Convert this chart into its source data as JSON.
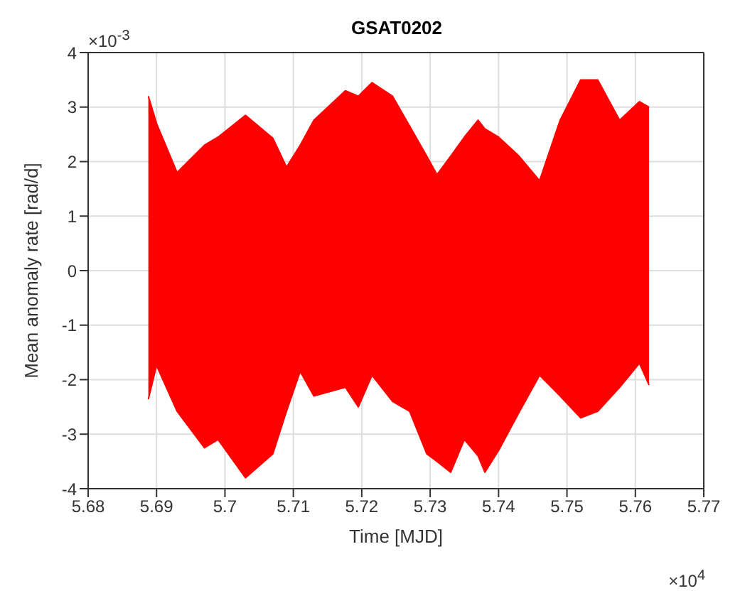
{
  "chart_data": {
    "type": "area",
    "title": "GSAT0202",
    "xlabel": "Time [MJD]",
    "ylabel": "Mean anomaly rate [rad/d]",
    "annotations": [
      "×10$^{-3}$",
      "×10$^{4}$"
    ],
    "xlim": [
      5.68,
      5.77
    ],
    "xticks": [
      5.68,
      5.69,
      5.7,
      5.71,
      5.72,
      5.73,
      5.74,
      5.75,
      5.76,
      5.77
    ],
    "ylim": [
      -4,
      4
    ],
    "yticks": [
      -4,
      -3,
      -2,
      -1,
      0,
      1,
      2,
      3,
      4
    ],
    "grid": true,
    "x": [
      5.6888,
      5.69,
      5.693,
      5.697,
      5.699,
      5.703,
      5.707,
      5.709,
      5.711,
      5.713,
      5.7176,
      5.7195,
      5.7215,
      5.7245,
      5.727,
      5.7295,
      5.731,
      5.733,
      5.735,
      5.737,
      5.738,
      5.74,
      5.743,
      5.746,
      5.749,
      5.752,
      5.7545,
      5.7577,
      5.7606,
      5.762
    ],
    "series": [
      {
        "color": "#ff0000",
        "values": [
          3.2,
          2.7,
          1.8,
          2.3,
          2.45,
          2.85,
          2.43,
          1.9,
          2.3,
          2.76,
          3.3,
          3.2,
          3.45,
          3.2,
          2.65,
          2.1,
          1.76,
          2.1,
          2.45,
          2.76,
          2.6,
          2.45,
          2.1,
          1.65,
          2.76,
          3.5,
          3.5,
          2.76,
          3.1,
          3.0
        ]
      },
      {
        "color": "#ff0000",
        "values": [
          -2.36,
          -1.74,
          -2.58,
          -3.25,
          -3.1,
          -3.8,
          -3.36,
          -2.58,
          -1.85,
          -2.3,
          -2.14,
          -2.5,
          -1.92,
          -2.4,
          -2.58,
          -3.36,
          -3.5,
          -3.7,
          -3.1,
          -3.4,
          -3.7,
          -3.3,
          -2.6,
          -1.92,
          -2.3,
          -2.7,
          -2.58,
          -2.14,
          -1.7,
          -2.1
        ]
      }
    ]
  }
}
